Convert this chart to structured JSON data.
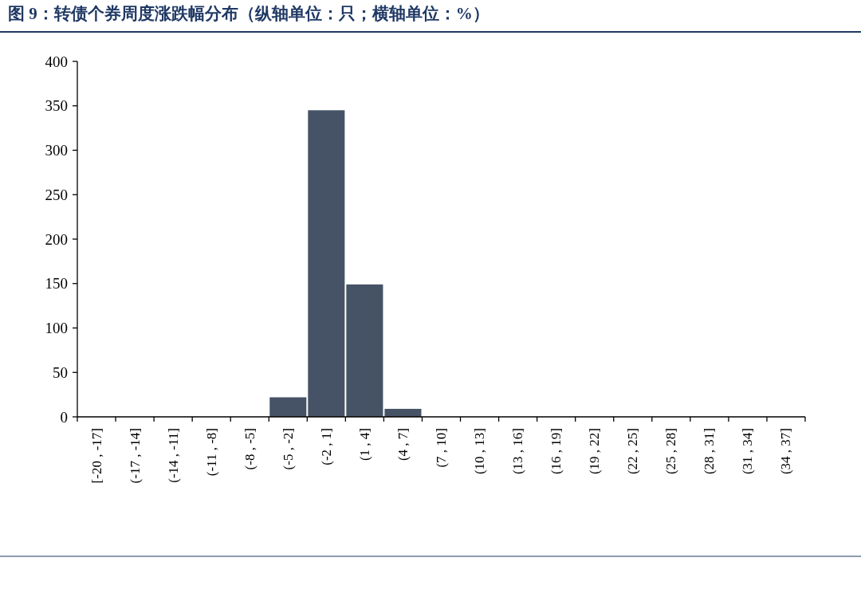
{
  "chart_data": {
    "type": "bar",
    "title": "图 9：转债个券周度涨跌幅分布（纵轴单位：只；横轴单位：%）",
    "categories": [
      "[-20 , -17]",
      "(-17 , -14]",
      "(-14 , -11]",
      "(-11 , -8]",
      "(-8 , -5]",
      "(-5 , -2]",
      "(-2 , 1]",
      "(1 , 4]",
      "(4 , 7]",
      "(7 , 10]",
      "(10 , 13]",
      "(13 , 16]",
      "(16 , 19]",
      "(19 , 22]",
      "(22 , 25]",
      "(25 , 28]",
      "(28 , 31]",
      "(31 , 34]",
      "(34 , 37]"
    ],
    "values": [
      0,
      0,
      0,
      0,
      0,
      22,
      345,
      149,
      9,
      0,
      0,
      0,
      0,
      0,
      0,
      0,
      0,
      0,
      0
    ],
    "color": "#465366",
    "ylim": [
      0,
      400
    ],
    "yticks": [
      0,
      50,
      100,
      150,
      200,
      250,
      300,
      350,
      400
    ],
    "grid": false
  }
}
